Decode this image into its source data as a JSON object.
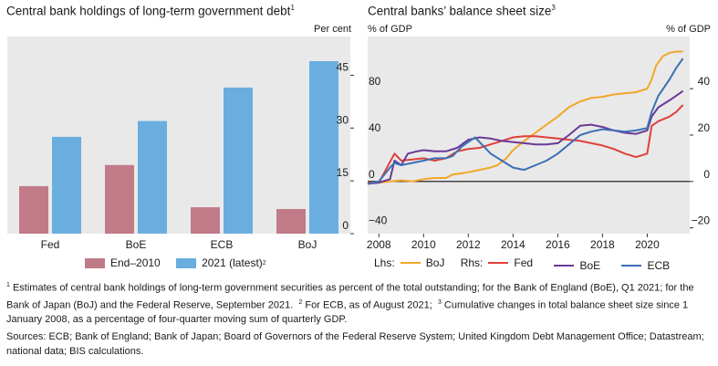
{
  "colors": {
    "end2010": "#c17b88",
    "latest2021": "#6aaee0",
    "panel_bg": "#e9e9e9",
    "boj": "#f0a829",
    "fed": "#e0403c",
    "boe": "#6a3a96",
    "ecb": "#3b70b4"
  },
  "left": {
    "title": "Central bank holdings of long-term government debt",
    "title_sup": "1",
    "unit": "Per cent",
    "legend_a": "End–2010",
    "legend_b": "2021 (latest)",
    "legend_b_sup": "2"
  },
  "right": {
    "title": "Central banks’ balance sheet size",
    "title_sup": "3",
    "left_unit": "% of GDP",
    "right_unit": "% of GDP",
    "legend": {
      "lhs": "Lhs:",
      "boj": "BoJ",
      "rhs": "Rhs:",
      "fed": "Fed",
      "boe": "BoE",
      "ecb": "ECB"
    }
  },
  "footnotes": {
    "n1": "1",
    "t1": "Estimates of central bank holdings of long-term government securities as percent of the total outstanding; for the Bank of England (BoE), Q1 2021; for the Bank of Japan (BoJ) and the Federal Reserve, September 2021.",
    "n2": "2",
    "t2": "For ECB, as of August 2021;",
    "n3": "3",
    "t3": "Cumulative changes in total balance sheet size since 1 January 2008, as a percentage of four-quarter moving sum of quarterly GDP."
  },
  "sources": "Sources: ECB; Bank of England; Bank of Japan; Board of Governors of the Federal Reserve System; United Kingdom Debt Management Office; Datastream; national data; BIS calculations.",
  "chart_data": [
    {
      "type": "bar",
      "categories": [
        "Fed",
        "BoE",
        "ECB",
        "BoJ"
      ],
      "series": [
        {
          "name": "End–2010",
          "values": [
            13.5,
            19.5,
            7.5,
            7
          ]
        },
        {
          "name": "2021 (latest)",
          "values": [
            27.5,
            32,
            41.5,
            49
          ]
        }
      ],
      "ylim": [
        0,
        56
      ],
      "yticks": [
        0,
        15,
        30,
        45
      ],
      "y_axis_side": "right",
      "grid": false,
      "legend": "bottom"
    },
    {
      "type": "line",
      "xlim": [
        2007.5,
        2021.9
      ],
      "xticks": [
        2008,
        2010,
        2012,
        2014,
        2016,
        2018,
        2020
      ],
      "y_left": {
        "lim": [
          -45,
          125
        ],
        "ticks": [
          -40,
          0,
          40,
          80
        ]
      },
      "y_right": {
        "lim": [
          -22.5,
          62.5
        ],
        "ticks": [
          -20,
          0,
          20,
          40
        ]
      },
      "zero_line": true,
      "legend": "bottom",
      "series": [
        {
          "name": "BoJ",
          "axis": "left",
          "points": [
            [
              2007.5,
              -1
            ],
            [
              2008,
              -1
            ],
            [
              2008.5,
              0
            ],
            [
              2009,
              1
            ],
            [
              2009.5,
              0
            ],
            [
              2010,
              2
            ],
            [
              2010.5,
              3
            ],
            [
              2011,
              3
            ],
            [
              2011.3,
              6
            ],
            [
              2011.7,
              7
            ],
            [
              2012,
              8
            ],
            [
              2012.5,
              10
            ],
            [
              2013,
              12
            ],
            [
              2013.3,
              14
            ],
            [
              2013.7,
              20
            ],
            [
              2014,
              27
            ],
            [
              2014.5,
              35
            ],
            [
              2015,
              42
            ],
            [
              2015.5,
              49
            ],
            [
              2016,
              56
            ],
            [
              2016.5,
              64
            ],
            [
              2017,
              69
            ],
            [
              2017.5,
              72
            ],
            [
              2018,
              73
            ],
            [
              2018.5,
              75
            ],
            [
              2019,
              76
            ],
            [
              2019.5,
              77
            ],
            [
              2020,
              80
            ],
            [
              2020.2,
              88
            ],
            [
              2020.4,
              100
            ],
            [
              2020.7,
              108
            ],
            [
              2021,
              111
            ],
            [
              2021.3,
              112
            ],
            [
              2021.6,
              112
            ]
          ]
        },
        {
          "name": "Fed",
          "axis": "right",
          "points": [
            [
              2007.5,
              -0.5
            ],
            [
              2008,
              -0.5
            ],
            [
              2008.7,
              12
            ],
            [
              2009,
              9
            ],
            [
              2009.5,
              9.5
            ],
            [
              2010,
              10
            ],
            [
              2010.5,
              9
            ],
            [
              2011,
              10
            ],
            [
              2011.5,
              13
            ],
            [
              2012,
              14
            ],
            [
              2012.5,
              14.5
            ],
            [
              2013,
              16
            ],
            [
              2013.5,
              17.5
            ],
            [
              2014,
              19
            ],
            [
              2014.5,
              19.5
            ],
            [
              2015,
              19.5
            ],
            [
              2015.5,
              19
            ],
            [
              2016,
              18.5
            ],
            [
              2016.5,
              18
            ],
            [
              2017,
              17.5
            ],
            [
              2017.5,
              16.5
            ],
            [
              2018,
              15.5
            ],
            [
              2018.5,
              14
            ],
            [
              2019,
              12
            ],
            [
              2019.5,
              10.5
            ],
            [
              2020,
              12
            ],
            [
              2020.2,
              24
            ],
            [
              2020.5,
              26
            ],
            [
              2021,
              28
            ],
            [
              2021.3,
              30
            ],
            [
              2021.6,
              33
            ]
          ]
        },
        {
          "name": "BoE",
          "axis": "right",
          "points": [
            [
              2007.5,
              -1
            ],
            [
              2008,
              -0.5
            ],
            [
              2008.5,
              1
            ],
            [
              2008.7,
              9
            ],
            [
              2009,
              7
            ],
            [
              2009.3,
              12
            ],
            [
              2009.7,
              13
            ],
            [
              2010,
              13.5
            ],
            [
              2010.5,
              13
            ],
            [
              2011,
              13
            ],
            [
              2011.5,
              14.5
            ],
            [
              2012,
              18
            ],
            [
              2012.5,
              19
            ],
            [
              2013,
              18.5
            ],
            [
              2013.5,
              17.5
            ],
            [
              2014,
              17
            ],
            [
              2014.5,
              16.5
            ],
            [
              2015,
              16
            ],
            [
              2015.5,
              16
            ],
            [
              2016,
              16.5
            ],
            [
              2016.5,
              20
            ],
            [
              2017,
              24
            ],
            [
              2017.5,
              24.5
            ],
            [
              2018,
              23.5
            ],
            [
              2018.5,
              22
            ],
            [
              2019,
              21
            ],
            [
              2019.5,
              20.5
            ],
            [
              2020,
              22
            ],
            [
              2020.2,
              28
            ],
            [
              2020.5,
              32
            ],
            [
              2021,
              35
            ],
            [
              2021.3,
              37
            ],
            [
              2021.6,
              39
            ]
          ]
        },
        {
          "name": "ECB",
          "axis": "right",
          "points": [
            [
              2007.5,
              -1
            ],
            [
              2008,
              0
            ],
            [
              2008.5,
              6
            ],
            [
              2008.7,
              8
            ],
            [
              2009,
              7
            ],
            [
              2009.5,
              8
            ],
            [
              2010,
              9
            ],
            [
              2010.5,
              10
            ],
            [
              2011,
              10
            ],
            [
              2011.3,
              11
            ],
            [
              2011.7,
              15
            ],
            [
              2012,
              17
            ],
            [
              2012.3,
              19
            ],
            [
              2012.7,
              15
            ],
            [
              2013,
              12
            ],
            [
              2013.5,
              9
            ],
            [
              2014,
              6
            ],
            [
              2014.5,
              5
            ],
            [
              2015,
              7
            ],
            [
              2015.5,
              9
            ],
            [
              2016,
              12
            ],
            [
              2016.5,
              16
            ],
            [
              2017,
              20
            ],
            [
              2017.5,
              21.5
            ],
            [
              2018,
              22.5
            ],
            [
              2018.5,
              22
            ],
            [
              2019,
              21.5
            ],
            [
              2019.5,
              22
            ],
            [
              2020,
              23
            ],
            [
              2020.2,
              30
            ],
            [
              2020.5,
              37
            ],
            [
              2021,
              44
            ],
            [
              2021.3,
              49
            ],
            [
              2021.6,
              53
            ]
          ]
        }
      ]
    }
  ]
}
